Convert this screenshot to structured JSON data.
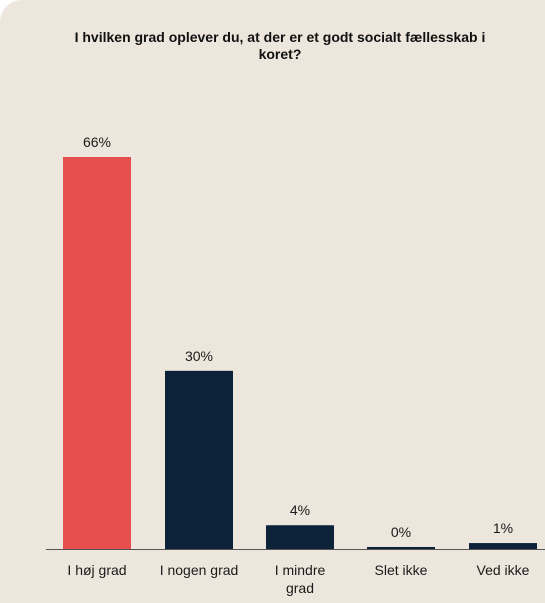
{
  "chart_data": {
    "type": "bar",
    "title": "I hvilken grad oplever du, at der er et godt socialt fællesskab i koret?",
    "categories": [
      "I høj grad",
      "I nogen grad",
      "I mindre grad",
      "Slet ikke",
      "Ved ikke"
    ],
    "category_lines": [
      [
        "I høj grad"
      ],
      [
        "I nogen grad"
      ],
      [
        "I mindre",
        "grad"
      ],
      [
        "Slet ikke"
      ],
      [
        "Ved ikke"
      ]
    ],
    "values": [
      66,
      30,
      4,
      0,
      1
    ],
    "data_labels": [
      "66%",
      "30%",
      "4%",
      "0%",
      "1%"
    ],
    "bar_colors": [
      "#e84e4e",
      "#0c2238",
      "#0c2238",
      "#0c2238",
      "#0c2238"
    ],
    "xlabel": "",
    "ylabel": "",
    "ylim": [
      0,
      66
    ],
    "grid": false,
    "legend": "none"
  },
  "colors": {
    "background": "#ece6dc",
    "accent": "#e84e4e",
    "primary": "#0c2238"
  }
}
